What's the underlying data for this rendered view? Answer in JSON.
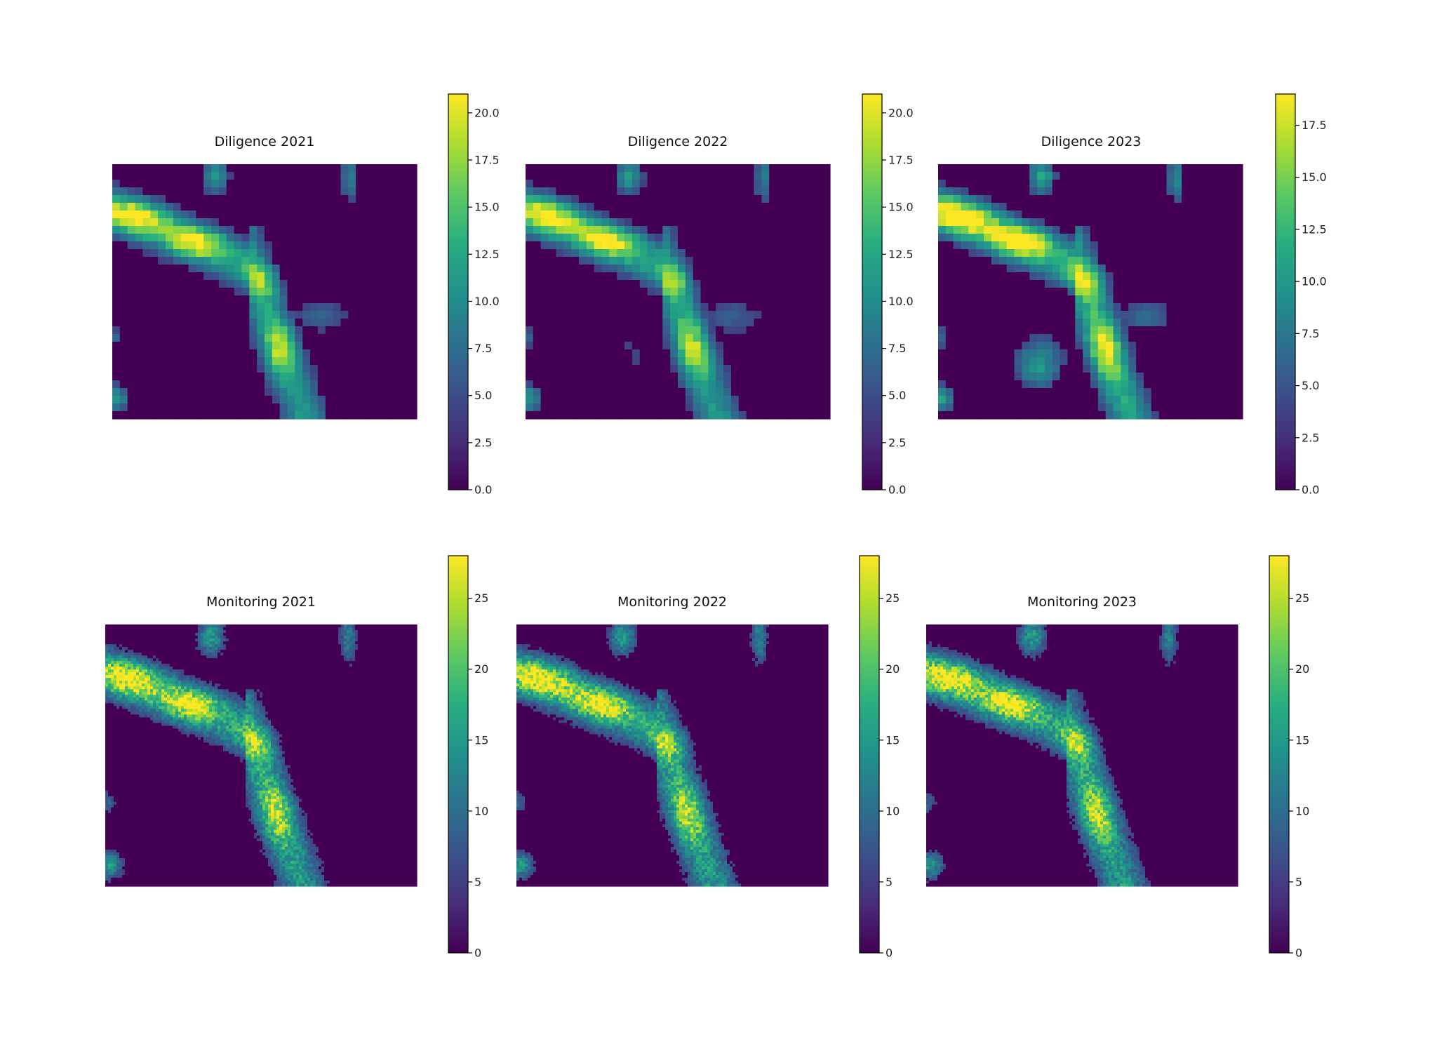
{
  "chart_data": [
    {
      "type": "heatmap",
      "title": "Diligence 2021",
      "resolution": "coarse",
      "colormap": "viridis",
      "vmin": 0,
      "vmax": 21,
      "grid": false,
      "colorbar_ticks": [
        "0.0",
        "2.5",
        "5.0",
        "7.5",
        "10.0",
        "12.5",
        "15.0",
        "17.5",
        "20.0"
      ],
      "colorbar_tick_values": [
        0,
        2.5,
        5,
        7.5,
        10,
        12.5,
        15,
        17.5,
        20
      ]
    },
    {
      "type": "heatmap",
      "title": "Diligence 2022",
      "resolution": "coarse",
      "colormap": "viridis",
      "vmin": 0,
      "vmax": 21,
      "grid": false,
      "colorbar_ticks": [
        "0.0",
        "2.5",
        "5.0",
        "7.5",
        "10.0",
        "12.5",
        "15.0",
        "17.5",
        "20.0"
      ],
      "colorbar_tick_values": [
        0,
        2.5,
        5,
        7.5,
        10,
        12.5,
        15,
        17.5,
        20
      ]
    },
    {
      "type": "heatmap",
      "title": "Diligence 2023",
      "resolution": "coarse",
      "colormap": "viridis",
      "vmin": 0,
      "vmax": 19,
      "grid": false,
      "colorbar_ticks": [
        "0.0",
        "2.5",
        "5.0",
        "7.5",
        "10.0",
        "12.5",
        "15.0",
        "17.5"
      ],
      "colorbar_tick_values": [
        0,
        2.5,
        5,
        7.5,
        10,
        12.5,
        15,
        17.5
      ]
    },
    {
      "type": "heatmap",
      "title": "Monitoring 2021",
      "resolution": "fine",
      "colormap": "viridis",
      "vmin": 0,
      "vmax": 28,
      "grid": false,
      "colorbar_ticks": [
        "0",
        "5",
        "10",
        "15",
        "20",
        "25"
      ],
      "colorbar_tick_values": [
        0,
        5,
        10,
        15,
        20,
        25
      ]
    },
    {
      "type": "heatmap",
      "title": "Monitoring 2022",
      "resolution": "fine",
      "colormap": "viridis",
      "vmin": 0,
      "vmax": 28,
      "grid": false,
      "colorbar_ticks": [
        "0",
        "5",
        "10",
        "15",
        "20",
        "25"
      ],
      "colorbar_tick_values": [
        0,
        5,
        10,
        15,
        20,
        25
      ]
    },
    {
      "type": "heatmap",
      "title": "Monitoring 2023",
      "resolution": "fine",
      "colormap": "viridis",
      "vmin": 0,
      "vmax": 28,
      "grid": false,
      "colorbar_ticks": [
        "0",
        "5",
        "10",
        "15",
        "20",
        "25"
      ],
      "colorbar_tick_values": [
        0,
        5,
        10,
        15,
        20,
        25
      ]
    }
  ]
}
